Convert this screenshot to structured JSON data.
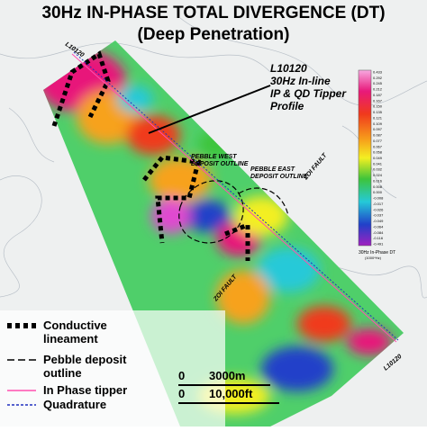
{
  "title": "30Hz IN-PHASE TOTAL DIVERGENCE (DT)",
  "subtitle": "(Deep Penetration)",
  "line_labels": [
    "L10120",
    "L10120"
  ],
  "callout": [
    "L10120",
    "30Hz In-line",
    "IP & QD Tipper",
    "Profile"
  ],
  "deposits": [
    [
      "PEBBLE WEST",
      "DEPOSIT OUTLINE"
    ],
    [
      "PEBBLE EAST",
      "DEPOSIT OUTLINE"
    ]
  ],
  "faults": [
    "ZOI FAULT",
    "ZOI FAULT"
  ],
  "colorbar": {
    "title": "30Hz In-Phase DT",
    "unit": "(1000*Hz)",
    "labels": [
      "0.433",
      "0.292",
      "0.245",
      "0.212",
      "0.187",
      "0.167",
      "0.150",
      "0.135",
      "0.121",
      "0.109",
      "0.097",
      "0.087",
      "0.077",
      "0.067",
      "0.058",
      "0.049",
      "0.041",
      "0.032",
      "0.024",
      "0.016",
      "0.008",
      "0.000",
      "-0.008",
      "-0.017",
      "-0.026",
      "-0.037",
      "-0.049",
      "-0.064",
      "-0.084",
      "-0.116",
      "-0.491"
    ]
  },
  "legend": [
    {
      "label": [
        "Conductive",
        "lineament"
      ]
    },
    {
      "label": [
        "Pebble deposit",
        "outline"
      ]
    },
    {
      "label": [
        "In Phase tipper"
      ]
    },
    {
      "label": [
        "Quadrature"
      ]
    }
  ],
  "scale": {
    "metric": [
      "0",
      "3000m"
    ],
    "imperial": [
      "0",
      "10,000ft"
    ]
  }
}
